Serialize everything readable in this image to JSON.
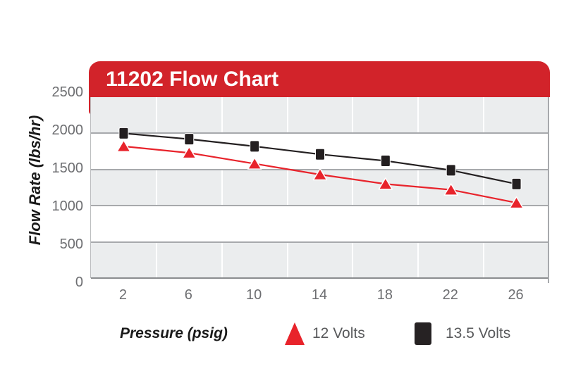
{
  "banner": {
    "title": "11202 Flow Chart",
    "bg_color": "#d2232a",
    "text_color": "#ffffff"
  },
  "chart_data": {
    "type": "line",
    "title": "11202 Flow Chart",
    "xlabel": "Pressure (psig)",
    "ylabel": "Flow Rate (lbs/hr)",
    "x": [
      2,
      6,
      10,
      14,
      18,
      22,
      26
    ],
    "yticks": [
      0,
      500,
      1000,
      1500,
      2000,
      2500
    ],
    "ylim": [
      0,
      2500
    ],
    "grid": "horizontal gridlines with alternating gray/white bands, white vertical category separators",
    "legend_position": "bottom",
    "series": [
      {
        "name": "13.5 Volts",
        "marker": "square",
        "color": "#231f20",
        "values": [
          2000,
          1920,
          1820,
          1710,
          1620,
          1490,
          1300
        ]
      },
      {
        "name": "12 Volts",
        "marker": "triangle",
        "color": "#e8232b",
        "values": [
          1820,
          1730,
          1580,
          1430,
          1300,
          1220,
          1040
        ]
      }
    ]
  },
  "colors": {
    "banner_red": "#d2232a",
    "series_red": "#e8232b",
    "series_black": "#231f20",
    "band_gray": "#ebedee",
    "gridline": "#a7a9ac",
    "tick_text": "#6d6e71",
    "legend_text": "#58595b"
  }
}
